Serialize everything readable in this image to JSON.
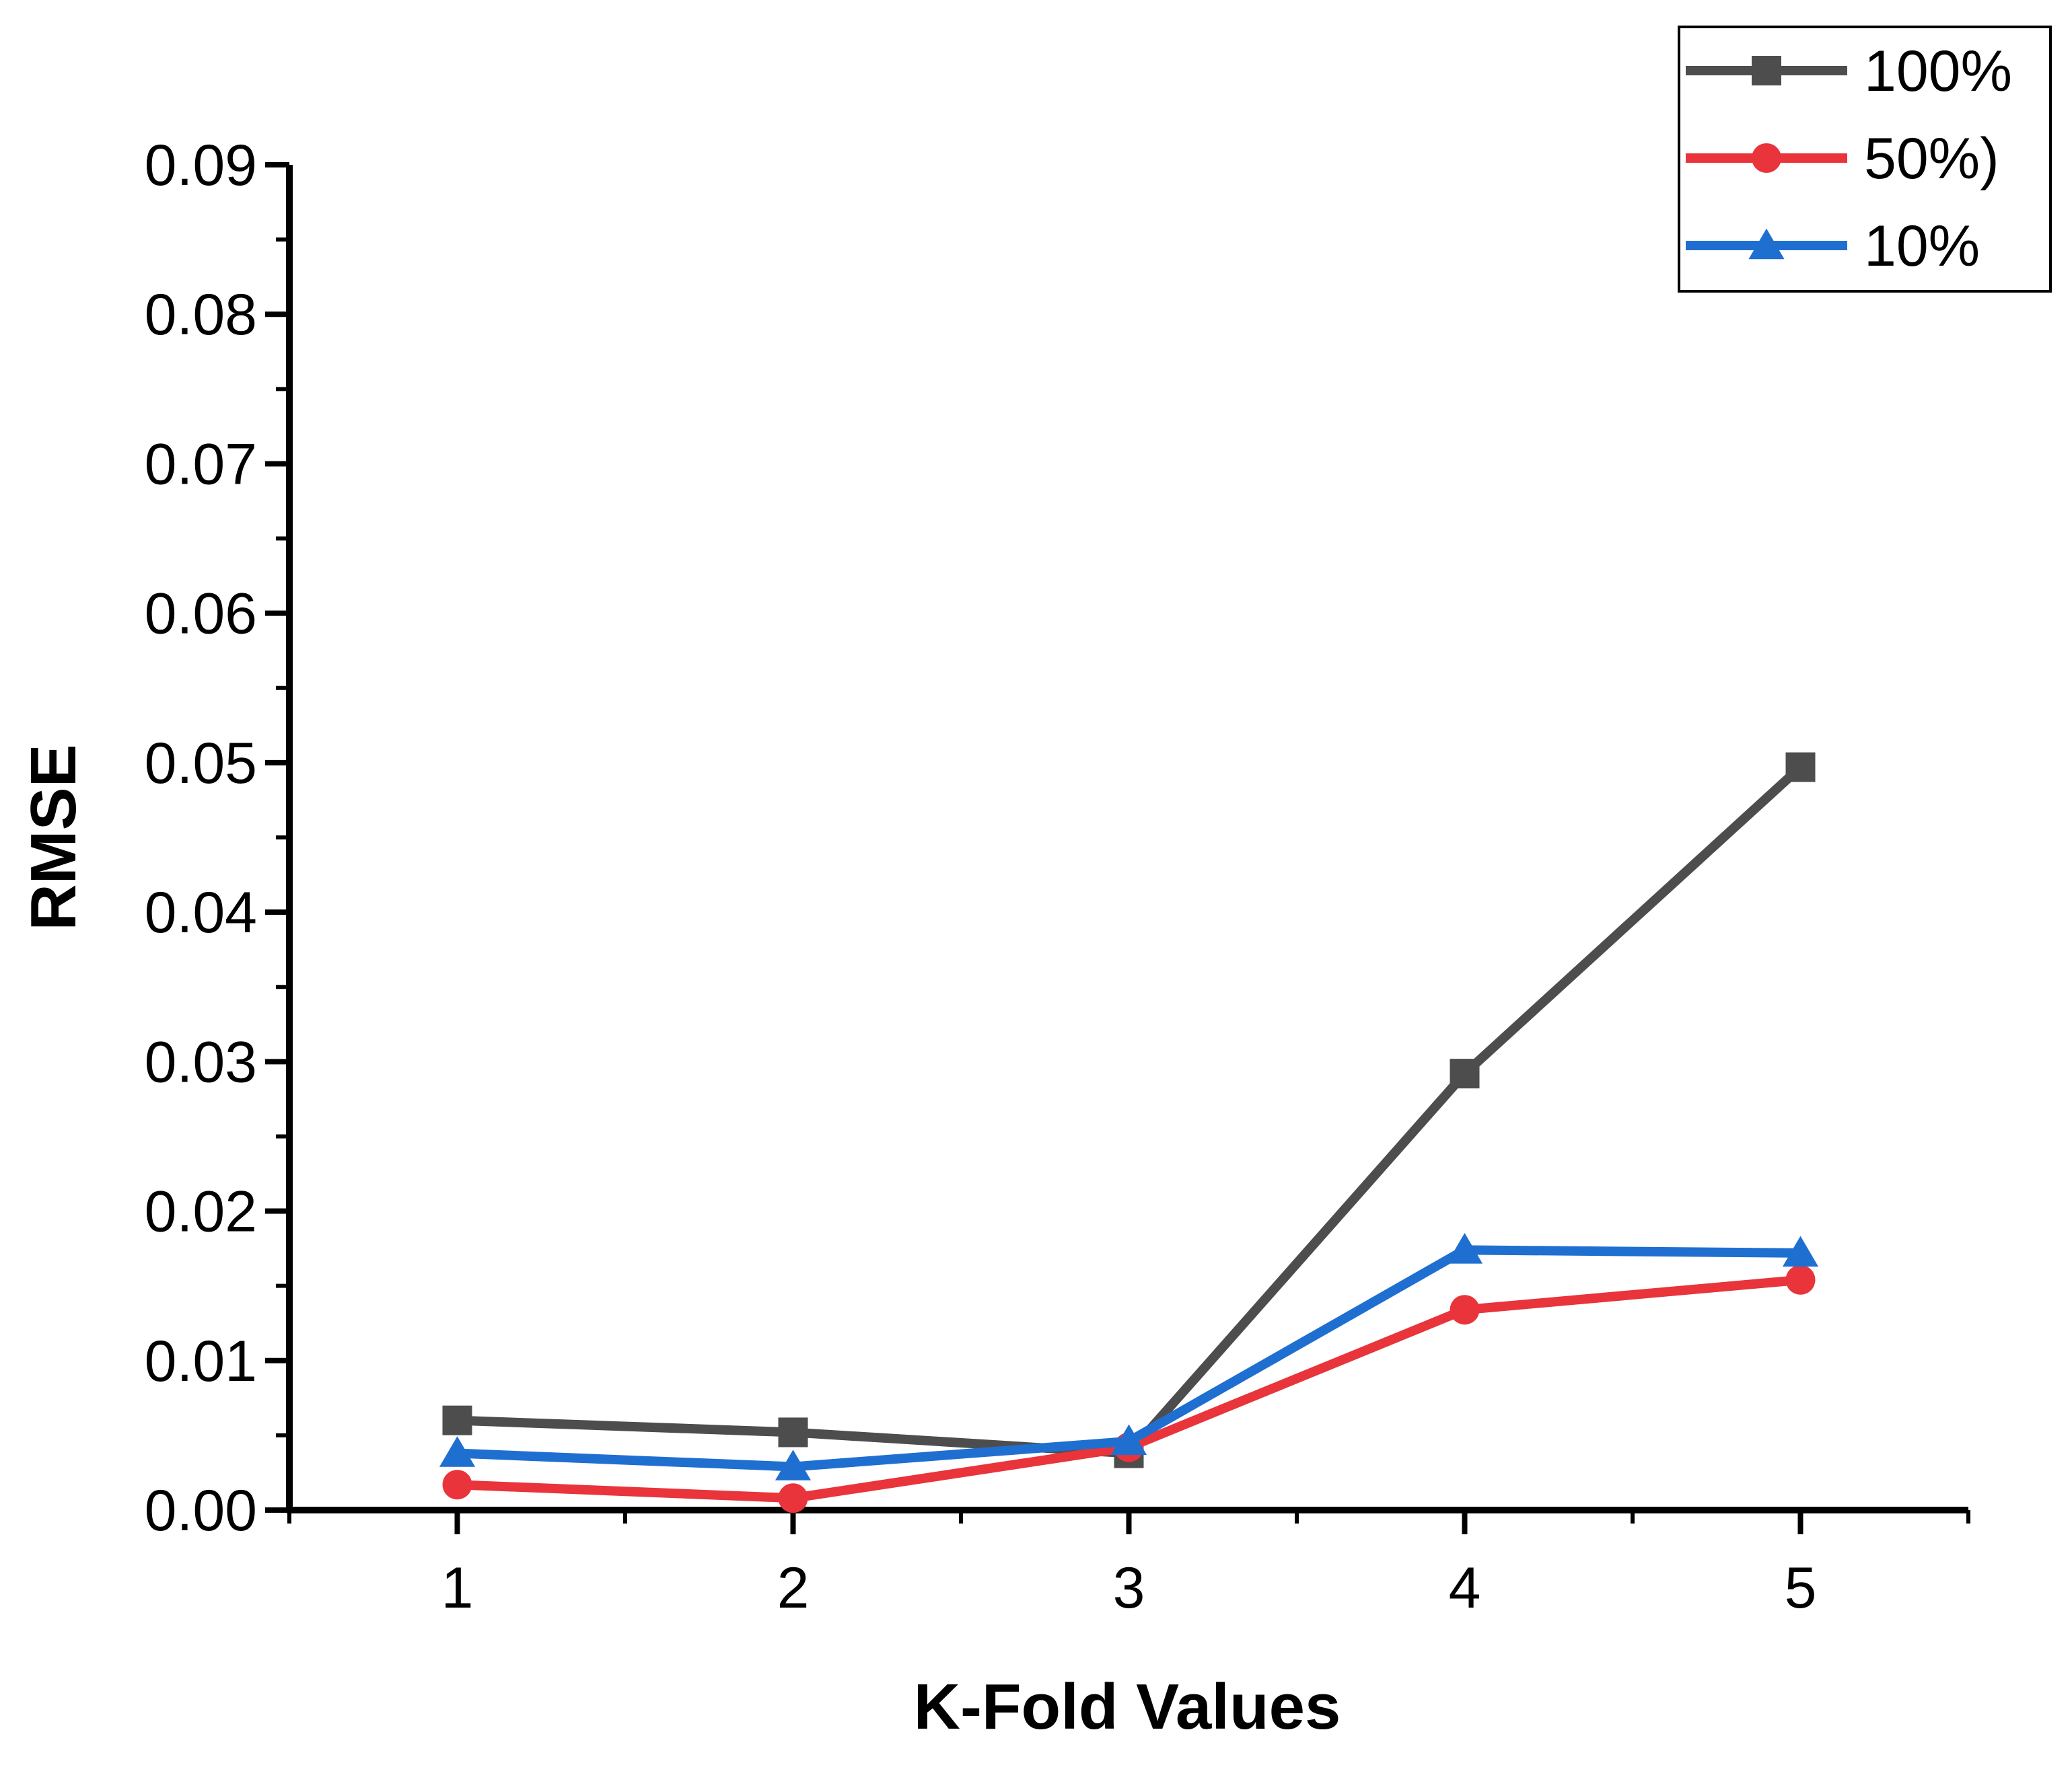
{
  "chart_data": {
    "type": "line",
    "title": "",
    "xlabel": "K-Fold Values",
    "ylabel": "RMSE",
    "x": [
      1,
      2,
      3,
      4,
      5
    ],
    "x_ticks": [
      "1",
      "2",
      "3",
      "4",
      "5"
    ],
    "xlim": [
      0.5,
      5.5
    ],
    "ylim": [
      0,
      0.09
    ],
    "y_ticks": [
      "0.00",
      "0.01",
      "0.02",
      "0.03",
      "0.04",
      "0.05",
      "0.06",
      "0.07",
      "0.08",
      "0.09"
    ],
    "grid": false,
    "legend_position": "top-right",
    "series": [
      {
        "name": "100%",
        "marker": "square",
        "color": "#4d4d4d",
        "values": [
          0.006,
          0.0052,
          0.0038,
          0.0292,
          0.0497
        ]
      },
      {
        "name": "50%)",
        "marker": "circle",
        "color": "#e8343a",
        "values": [
          0.0017,
          0.0008,
          0.0042,
          0.0134,
          0.0154
        ]
      },
      {
        "name": "10%",
        "marker": "triangle",
        "color": "#1f6fd1",
        "values": [
          0.0038,
          0.0029,
          0.0046,
          0.0174,
          0.0172
        ]
      }
    ]
  }
}
